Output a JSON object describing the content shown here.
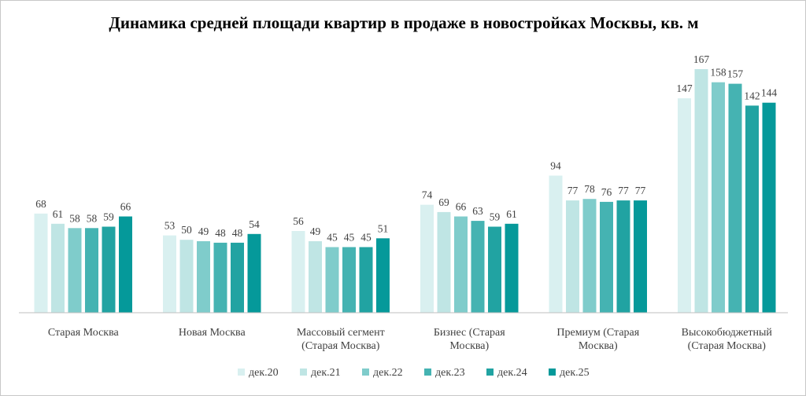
{
  "chart_data": {
    "type": "bar",
    "title": "Динамика  средней площади квартир  в продаже в новостройках  Москвы, кв. м",
    "xlabel": "",
    "ylabel": "",
    "ylim": [
      0,
      170
    ],
    "grid": false,
    "legend_position": "bottom",
    "categories": [
      [
        "Старая Москва"
      ],
      [
        "Новая Москва"
      ],
      [
        "Массовый сегмент",
        "(Старая Москва)"
      ],
      [
        "Бизнес (Старая",
        "Москва)"
      ],
      [
        "Премиум (Старая",
        "Москва)"
      ],
      [
        "Высокобюджетный",
        "(Старая Москва)"
      ]
    ],
    "series": [
      {
        "name": "дек.20",
        "color": "#d9f0f0",
        "values": [
          68,
          53,
          56,
          74,
          94,
          147
        ]
      },
      {
        "name": "дек.21",
        "color": "#bfe5e4",
        "values": [
          61,
          50,
          49,
          69,
          77,
          167
        ]
      },
      {
        "name": "дек.22",
        "color": "#7fcccb",
        "values": [
          58,
          49,
          45,
          66,
          78,
          158
        ]
      },
      {
        "name": "дек.23",
        "color": "#45b3b2",
        "values": [
          58,
          48,
          45,
          63,
          76,
          157
        ]
      },
      {
        "name": "дек.24",
        "color": "#21a3a2",
        "values": [
          59,
          48,
          45,
          59,
          77,
          142
        ]
      },
      {
        "name": "дек.25",
        "color": "#05999a",
        "values": [
          66,
          54,
          51,
          61,
          77,
          144
        ]
      }
    ]
  }
}
